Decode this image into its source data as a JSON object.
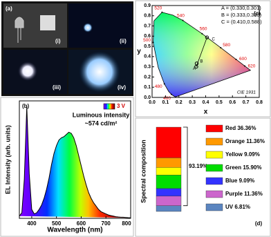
{
  "photos": {
    "label": "(a)",
    "captions": [
      "(i)",
      "(ii)",
      "(iii)",
      "(iv)"
    ]
  },
  "chart_data": [
    {
      "type": "line",
      "label": "(b)",
      "xlabel": "Wavelength (nm)",
      "ylabel": "EL Intensity (arb. units)",
      "annotation_title": "Luminous intensity",
      "annotation_value": "~574 cd/m²",
      "legend_label": "3 V",
      "x": [
        350,
        360,
        370,
        380,
        390,
        400,
        410,
        420,
        430,
        440,
        450,
        460,
        470,
        480,
        490,
        500,
        510,
        520,
        530,
        540,
        550,
        560,
        570,
        580,
        590,
        600,
        610,
        620,
        630,
        640,
        650,
        660,
        670,
        680,
        690,
        700,
        710,
        720,
        730,
        740,
        750,
        760,
        770,
        780,
        790,
        800
      ],
      "series": [
        {
          "color": "#000000",
          "values": [
            0.02,
            0.05,
            0.35,
            1.0,
            0.4,
            0.08,
            0.04,
            0.05,
            0.08,
            0.12,
            0.18,
            0.26,
            0.36,
            0.48,
            0.58,
            0.65,
            0.7,
            0.72,
            0.73,
            0.75,
            0.77,
            0.76,
            0.72,
            0.65,
            0.56,
            0.47,
            0.38,
            0.3,
            0.23,
            0.18,
            0.14,
            0.11,
            0.08,
            0.06,
            0.05,
            0.04,
            0.03,
            0.025,
            0.02,
            0.015,
            0.012,
            0.01,
            0.01,
            0.008,
            0.006,
            0.005
          ]
        }
      ],
      "xlim": [
        350,
        800
      ],
      "xticks": [
        400,
        500,
        600,
        700,
        800
      ],
      "ylim": [
        0,
        1.05
      ]
    },
    {
      "type": "cie",
      "label": "(c)",
      "xlabel": "x",
      "ylabel": "y",
      "note": "CIE 1931",
      "xlim": [
        0,
        0.8
      ],
      "xticks": [
        {
          "value": 0,
          "label": "0.0"
        },
        0.1,
        0.2,
        0.3,
        0.4,
        0.5,
        0.6,
        0.7,
        0.8
      ],
      "ylim": [
        0,
        0.9
      ],
      "yticks": [
        {
          "value": 0,
          "label": "0.0"
        },
        0.1,
        0.2,
        0.3,
        0.4,
        0.5,
        0.6,
        0.7,
        0.8,
        0.9
      ],
      "locus": {
        "wavelengths": [
          null,
          null,
          460,
          null,
          480,
          null,
          500,
          null,
          520,
          null,
          540,
          560,
          580,
          600,
          620,
          null
        ],
        "x": [
          0.1741,
          0.1566,
          0.144,
          0.1241,
          0.0913,
          0.0454,
          0.0082,
          0.0139,
          0.0743,
          0.1547,
          0.2296,
          0.3731,
          0.5125,
          0.627,
          0.6915,
          0.7347
        ],
        "y": [
          0.005,
          0.0177,
          0.0297,
          0.0578,
          0.1327,
          0.295,
          0.5384,
          0.7502,
          0.8338,
          0.8059,
          0.7543,
          0.6245,
          0.4866,
          0.3725,
          0.3083,
          0.2653
        ]
      },
      "points": {
        "names": [
          "A",
          "B",
          "C"
        ],
        "x": [
          0.33,
          0.333,
          0.41
        ],
        "y": [
          0.301,
          0.333,
          0.588
        ],
        "labels": [
          "A = (0.330,0.301)",
          "B = (0.333,0.333)",
          "C = (0.410,0.588)"
        ]
      }
    },
    {
      "type": "stacked-bar",
      "label": "(d)",
      "ylabel": "Spectral composition",
      "annotation": "93.19%",
      "ylim": [
        0,
        100
      ],
      "series": [
        {
          "name": "UV",
          "color": "#5b85c0",
          "values": [
            6.81
          ],
          "value_labels": [
            "6.81%"
          ]
        },
        {
          "name": "Purple",
          "color": "#cc66cc",
          "values": [
            11.36
          ],
          "value_labels": [
            "11.36%"
          ]
        },
        {
          "name": "Blue",
          "color": "#3333ff",
          "values": [
            9.09
          ],
          "value_labels": [
            "9.09%"
          ]
        },
        {
          "name": "Green",
          "color": "#00dd00",
          "values": [
            15.9
          ],
          "value_labels": [
            "15.90%"
          ]
        },
        {
          "name": "Yellow",
          "color": "#ffff00",
          "values": [
            9.09
          ],
          "value_labels": [
            "9.09%"
          ]
        },
        {
          "name": "Orange",
          "color": "#ff9900",
          "values": [
            11.36
          ],
          "value_labels": [
            "11.36%"
          ]
        },
        {
          "name": "Red",
          "color": "#ff0000",
          "values": [
            36.36
          ],
          "value_labels": [
            "36.36%"
          ]
        }
      ]
    }
  ]
}
